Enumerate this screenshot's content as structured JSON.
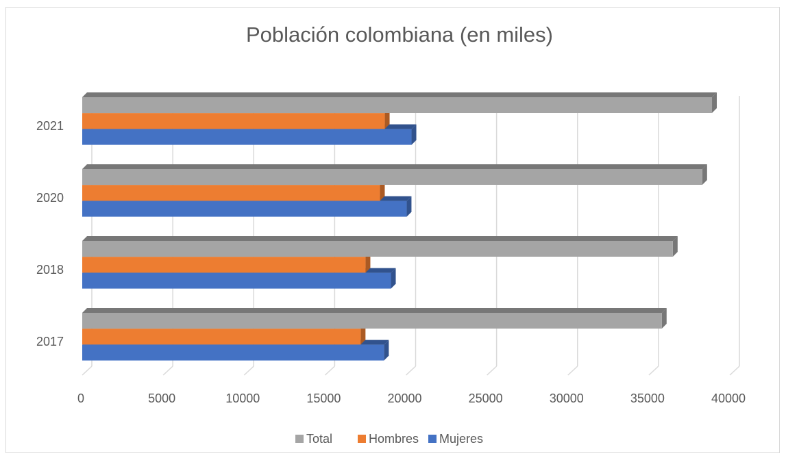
{
  "chart_data": {
    "type": "bar",
    "orientation": "horizontal",
    "title": "Población colombiana (en miles)",
    "categories": [
      "2017",
      "2018",
      "2020",
      "2021"
    ],
    "series": [
      {
        "name": "Total",
        "color": "#a5a5a5",
        "values": [
          35800,
          36480,
          38300,
          38900
        ]
      },
      {
        "name": "Hombres",
        "color": "#ed7d31",
        "values": [
          17200,
          17500,
          18390,
          18690
        ]
      },
      {
        "name": "Mujeres",
        "color": "#4472c4",
        "values": [
          18640,
          19070,
          20040,
          20340
        ]
      }
    ],
    "xlim": [
      0,
      40000
    ],
    "xticks": [
      0,
      5000,
      10000,
      15000,
      20000,
      25000,
      30000,
      35000,
      40000
    ],
    "grid": true,
    "legend": "bottom"
  }
}
